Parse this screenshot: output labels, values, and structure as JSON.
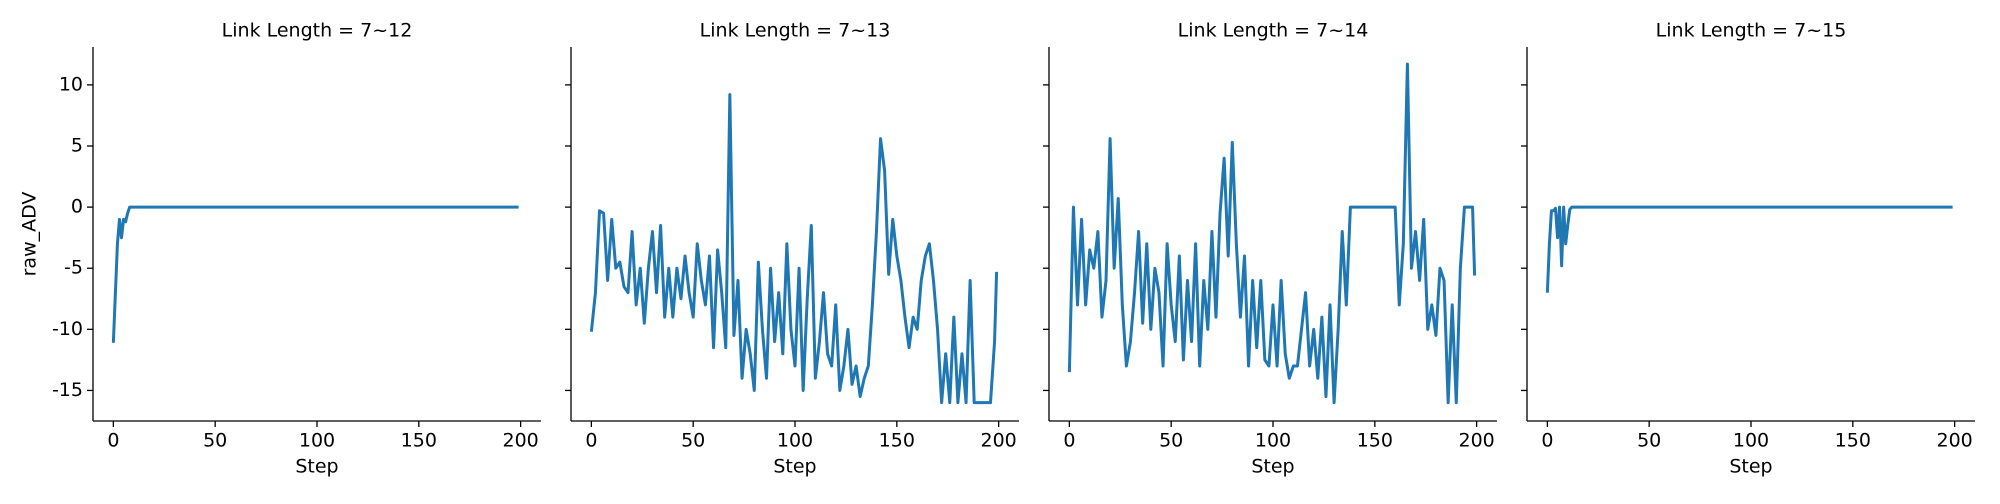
{
  "chart_data": [
    {
      "type": "line",
      "title": "Link Length = 7~12",
      "xlabel": "Step",
      "ylabel": "raw_ADV",
      "ytick_labels": true,
      "color": "#1f77b4",
      "x": [
        0,
        1,
        2,
        3,
        4,
        5,
        6,
        7,
        8,
        9,
        199
      ],
      "values": [
        -11.1,
        -7,
        -3,
        -1,
        -2.5,
        -1,
        -1.2,
        -0.5,
        0,
        0,
        0
      ],
      "xlim": [
        -10,
        210
      ],
      "ylim": [
        -17.5,
        13.1
      ],
      "xticks": [
        0,
        50,
        100,
        150,
        200
      ],
      "yticks": [
        -15,
        -10,
        -5,
        0,
        5,
        10
      ]
    },
    {
      "type": "line",
      "title": "Link Length = 7~13",
      "xlabel": "Step",
      "ytick_labels": false,
      "color": "#1f77b4",
      "x": [
        0,
        2,
        4,
        6,
        8,
        10,
        12,
        14,
        16,
        18,
        20,
        22,
        24,
        26,
        28,
        30,
        32,
        34,
        36,
        38,
        40,
        42,
        44,
        46,
        48,
        50,
        52,
        54,
        56,
        58,
        60,
        62,
        64,
        66,
        68,
        70,
        72,
        74,
        76,
        78,
        80,
        82,
        84,
        86,
        88,
        90,
        92,
        94,
        96,
        98,
        100,
        102,
        104,
        106,
        108,
        110,
        112,
        114,
        116,
        118,
        120,
        122,
        124,
        126,
        128,
        130,
        132,
        134,
        136,
        138,
        140,
        142,
        144,
        146,
        148,
        150,
        152,
        154,
        156,
        158,
        160,
        162,
        164,
        166,
        168,
        170,
        172,
        174,
        176,
        178,
        180,
        182,
        184,
        186,
        188,
        190,
        192,
        194,
        196,
        198,
        199
      ],
      "values": [
        -10.2,
        -7,
        -0.3,
        -0.5,
        -6,
        -1,
        -5,
        -4.5,
        -6.5,
        -7,
        -2,
        -8,
        -5,
        -9.5,
        -5,
        -2,
        -7,
        -1.5,
        -9,
        -5,
        -9,
        -5,
        -7.5,
        -4,
        -7,
        -9,
        -3,
        -6,
        -8,
        -4,
        -11.5,
        -3.5,
        -7,
        -11.5,
        9.2,
        -10.5,
        -6,
        -14,
        -10,
        -12,
        -15,
        -4.5,
        -10,
        -14,
        -5,
        -11,
        -7,
        -12,
        -3,
        -10,
        -13,
        -5,
        -15,
        -7.5,
        -1.5,
        -14,
        -11,
        -7,
        -12,
        -13,
        -8,
        -15,
        -13,
        -10,
        -14.5,
        -13,
        -15.5,
        -14,
        -13,
        -8,
        -2,
        5.6,
        3,
        -5.5,
        -1,
        -4,
        -6,
        -9,
        -11.5,
        -9,
        -10,
        -6,
        -4,
        -3,
        -6,
        -10,
        -16,
        -12,
        -16,
        -9,
        -16,
        -12,
        -16,
        -6,
        -16,
        -16,
        -16,
        -16,
        -16,
        -11,
        -5.3
      ],
      "xlim": [
        -10,
        210
      ],
      "ylim": [
        -17.5,
        13.1
      ],
      "xticks": [
        0,
        50,
        100,
        150,
        200
      ],
      "yticks": [
        -15,
        -10,
        -5,
        0,
        5,
        10
      ]
    },
    {
      "type": "line",
      "title": "Link Length = 7~14",
      "xlabel": "Step",
      "ytick_labels": false,
      "color": "#1f77b4",
      "x": [
        0,
        2,
        4,
        6,
        8,
        10,
        12,
        14,
        16,
        18,
        20,
        22,
        24,
        26,
        28,
        30,
        32,
        34,
        36,
        38,
        40,
        42,
        44,
        46,
        48,
        50,
        52,
        54,
        56,
        58,
        60,
        62,
        64,
        66,
        68,
        70,
        72,
        74,
        76,
        78,
        80,
        82,
        84,
        86,
        88,
        90,
        92,
        94,
        96,
        98,
        100,
        102,
        104,
        106,
        108,
        110,
        112,
        114,
        116,
        118,
        120,
        122,
        124,
        126,
        128,
        130,
        132,
        134,
        136,
        138,
        140,
        142,
        144,
        146,
        148,
        150,
        152,
        154,
        156,
        158,
        160,
        162,
        164,
        166,
        168,
        170,
        172,
        174,
        176,
        178,
        180,
        182,
        184,
        186,
        188,
        190,
        192,
        194,
        196,
        198,
        199
      ],
      "values": [
        -13.5,
        0,
        -8,
        -1,
        -8,
        -3.5,
        -5,
        -2,
        -9,
        -6,
        5.6,
        -5,
        0.7,
        -8,
        -13,
        -11,
        -7,
        -2,
        -9.5,
        -3,
        -10,
        -5,
        -7,
        -13,
        -3,
        -8,
        -11,
        -4,
        -12.5,
        -6,
        -11,
        -3,
        -13,
        -6,
        -10,
        -2,
        -9,
        -0.5,
        4,
        -4,
        5.3,
        -3,
        -9,
        -4,
        -13,
        -6,
        -11.5,
        -6,
        -12.5,
        -13,
        -8,
        -13,
        -6,
        -12,
        -14,
        -13,
        -13,
        -10,
        -7,
        -13,
        -10,
        -14,
        -9,
        -15.5,
        -8,
        -16,
        -10,
        -2,
        -8,
        0,
        0,
        0,
        0,
        0,
        0,
        0,
        0,
        0,
        0,
        0,
        0,
        -8,
        -3,
        11.7,
        -5,
        -2,
        -6,
        -1,
        -10,
        -8,
        -10.5,
        -5,
        -6,
        -16,
        -8,
        -16,
        -5,
        0,
        0,
        0,
        -5.6
      ],
      "xlim": [
        -10,
        210
      ],
      "ylim": [
        -17.5,
        13.1
      ],
      "xticks": [
        0,
        50,
        100,
        150,
        200
      ],
      "yticks": [
        -15,
        -10,
        -5,
        0,
        5,
        10
      ]
    },
    {
      "type": "line",
      "title": "Link Length = 7~15",
      "xlabel": "Step",
      "ytick_labels": false,
      "color": "#1f77b4",
      "x": [
        0,
        1,
        2,
        3,
        4,
        5,
        6,
        7,
        8,
        9,
        10,
        11,
        12,
        199
      ],
      "values": [
        -7,
        -3,
        -0.3,
        -0.3,
        -0.1,
        -2.5,
        0,
        -4.8,
        0,
        -3,
        -1.5,
        -0.2,
        0,
        0
      ],
      "xlim": [
        -10,
        210
      ],
      "ylim": [
        -17.5,
        13.1
      ],
      "xticks": [
        0,
        50,
        100,
        150,
        200
      ],
      "yticks": [
        -15,
        -10,
        -5,
        0,
        5,
        10
      ]
    }
  ]
}
